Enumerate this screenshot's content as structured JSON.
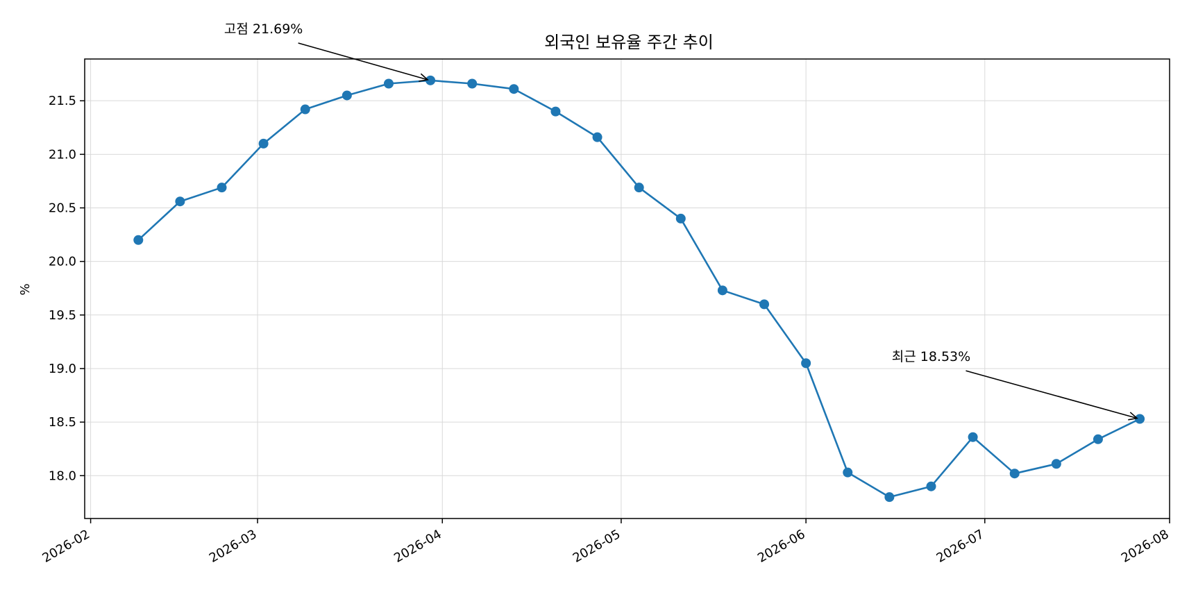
{
  "chart_data": {
    "type": "line",
    "title": "외국인 보유율 주간 추이",
    "xlabel": "",
    "ylabel": "%",
    "grid": true,
    "colors": {
      "series": "#1f77b4"
    },
    "ylim": [
      17.6,
      21.89
    ],
    "xlim": [
      "2026-01-31",
      "2026-08-01"
    ],
    "x_ticks": [
      "2026-02",
      "2026-03",
      "2026-04",
      "2026-05",
      "2026-06",
      "2026-07",
      "2026-08"
    ],
    "y_ticks": [
      18.0,
      18.5,
      19.0,
      19.5,
      20.0,
      20.5,
      21.0,
      21.5
    ],
    "series": [
      {
        "x": [
          "2026-02-09",
          "2026-02-16",
          "2026-02-23",
          "2026-03-02",
          "2026-03-09",
          "2026-03-16",
          "2026-03-23",
          "2026-03-30",
          "2026-04-06",
          "2026-04-13",
          "2026-04-20",
          "2026-04-27",
          "2026-05-04",
          "2026-05-11",
          "2026-05-18",
          "2026-05-25",
          "2026-06-01",
          "2026-06-08",
          "2026-06-15",
          "2026-06-22",
          "2026-06-29",
          "2026-07-06",
          "2026-07-13",
          "2026-07-20",
          "2026-07-27"
        ],
        "values": [
          20.2,
          20.56,
          20.69,
          21.1,
          21.42,
          21.55,
          21.66,
          21.69,
          21.66,
          21.61,
          21.4,
          21.16,
          20.69,
          20.4,
          19.73,
          19.6,
          19.05,
          18.03,
          17.8,
          17.9,
          18.36,
          18.02,
          18.11,
          18.34,
          18.53
        ]
      }
    ],
    "annotations": [
      {
        "text": "고점 21.69%",
        "x": "2026-03-30",
        "y": 21.69,
        "text_x": "2026-03-02",
        "text_y": 22.13
      },
      {
        "text": "최근 18.53%",
        "x": "2026-07-27",
        "y": 18.53,
        "text_x": "2026-06-22",
        "text_y": 19.07
      }
    ]
  }
}
